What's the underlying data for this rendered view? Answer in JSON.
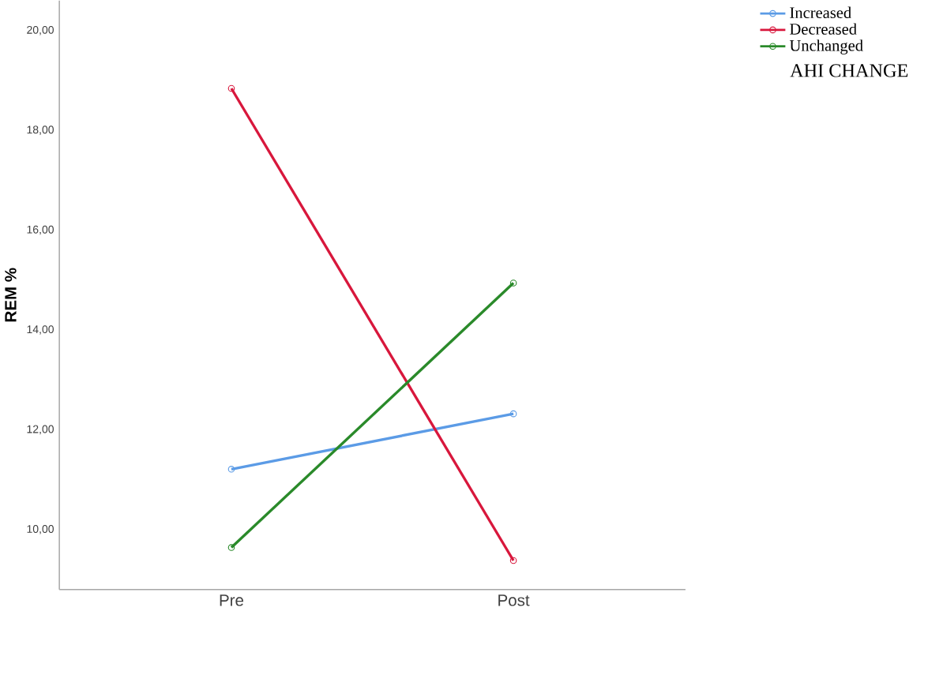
{
  "chart_data": {
    "type": "line",
    "ylabel": "REM %",
    "legend_title": "AHI CHANGE",
    "categories": [
      "Pre",
      "Post"
    ],
    "series": [
      {
        "name": "Increased",
        "color": "#5b9be6",
        "values": [
          11.21,
          12.32
        ]
      },
      {
        "name": "Decreased",
        "color": "#d8173c",
        "values": [
          18.84,
          9.38
        ]
      },
      {
        "name": "Unchanged",
        "color": "#2a8a2a",
        "values": [
          9.64,
          14.94
        ]
      }
    ],
    "ylim": [
      8.8,
      20.6
    ],
    "yticks": [
      {
        "value": 10,
        "label": "10,00"
      },
      {
        "value": 12,
        "label": "12,00"
      },
      {
        "value": 14,
        "label": "14,00"
      },
      {
        "value": 16,
        "label": "16,00"
      },
      {
        "value": 18,
        "label": "18,00"
      },
      {
        "value": 20,
        "label": "20,00"
      }
    ],
    "grid": false,
    "legend": "top right",
    "marker": "circle",
    "line_style": "solid"
  }
}
